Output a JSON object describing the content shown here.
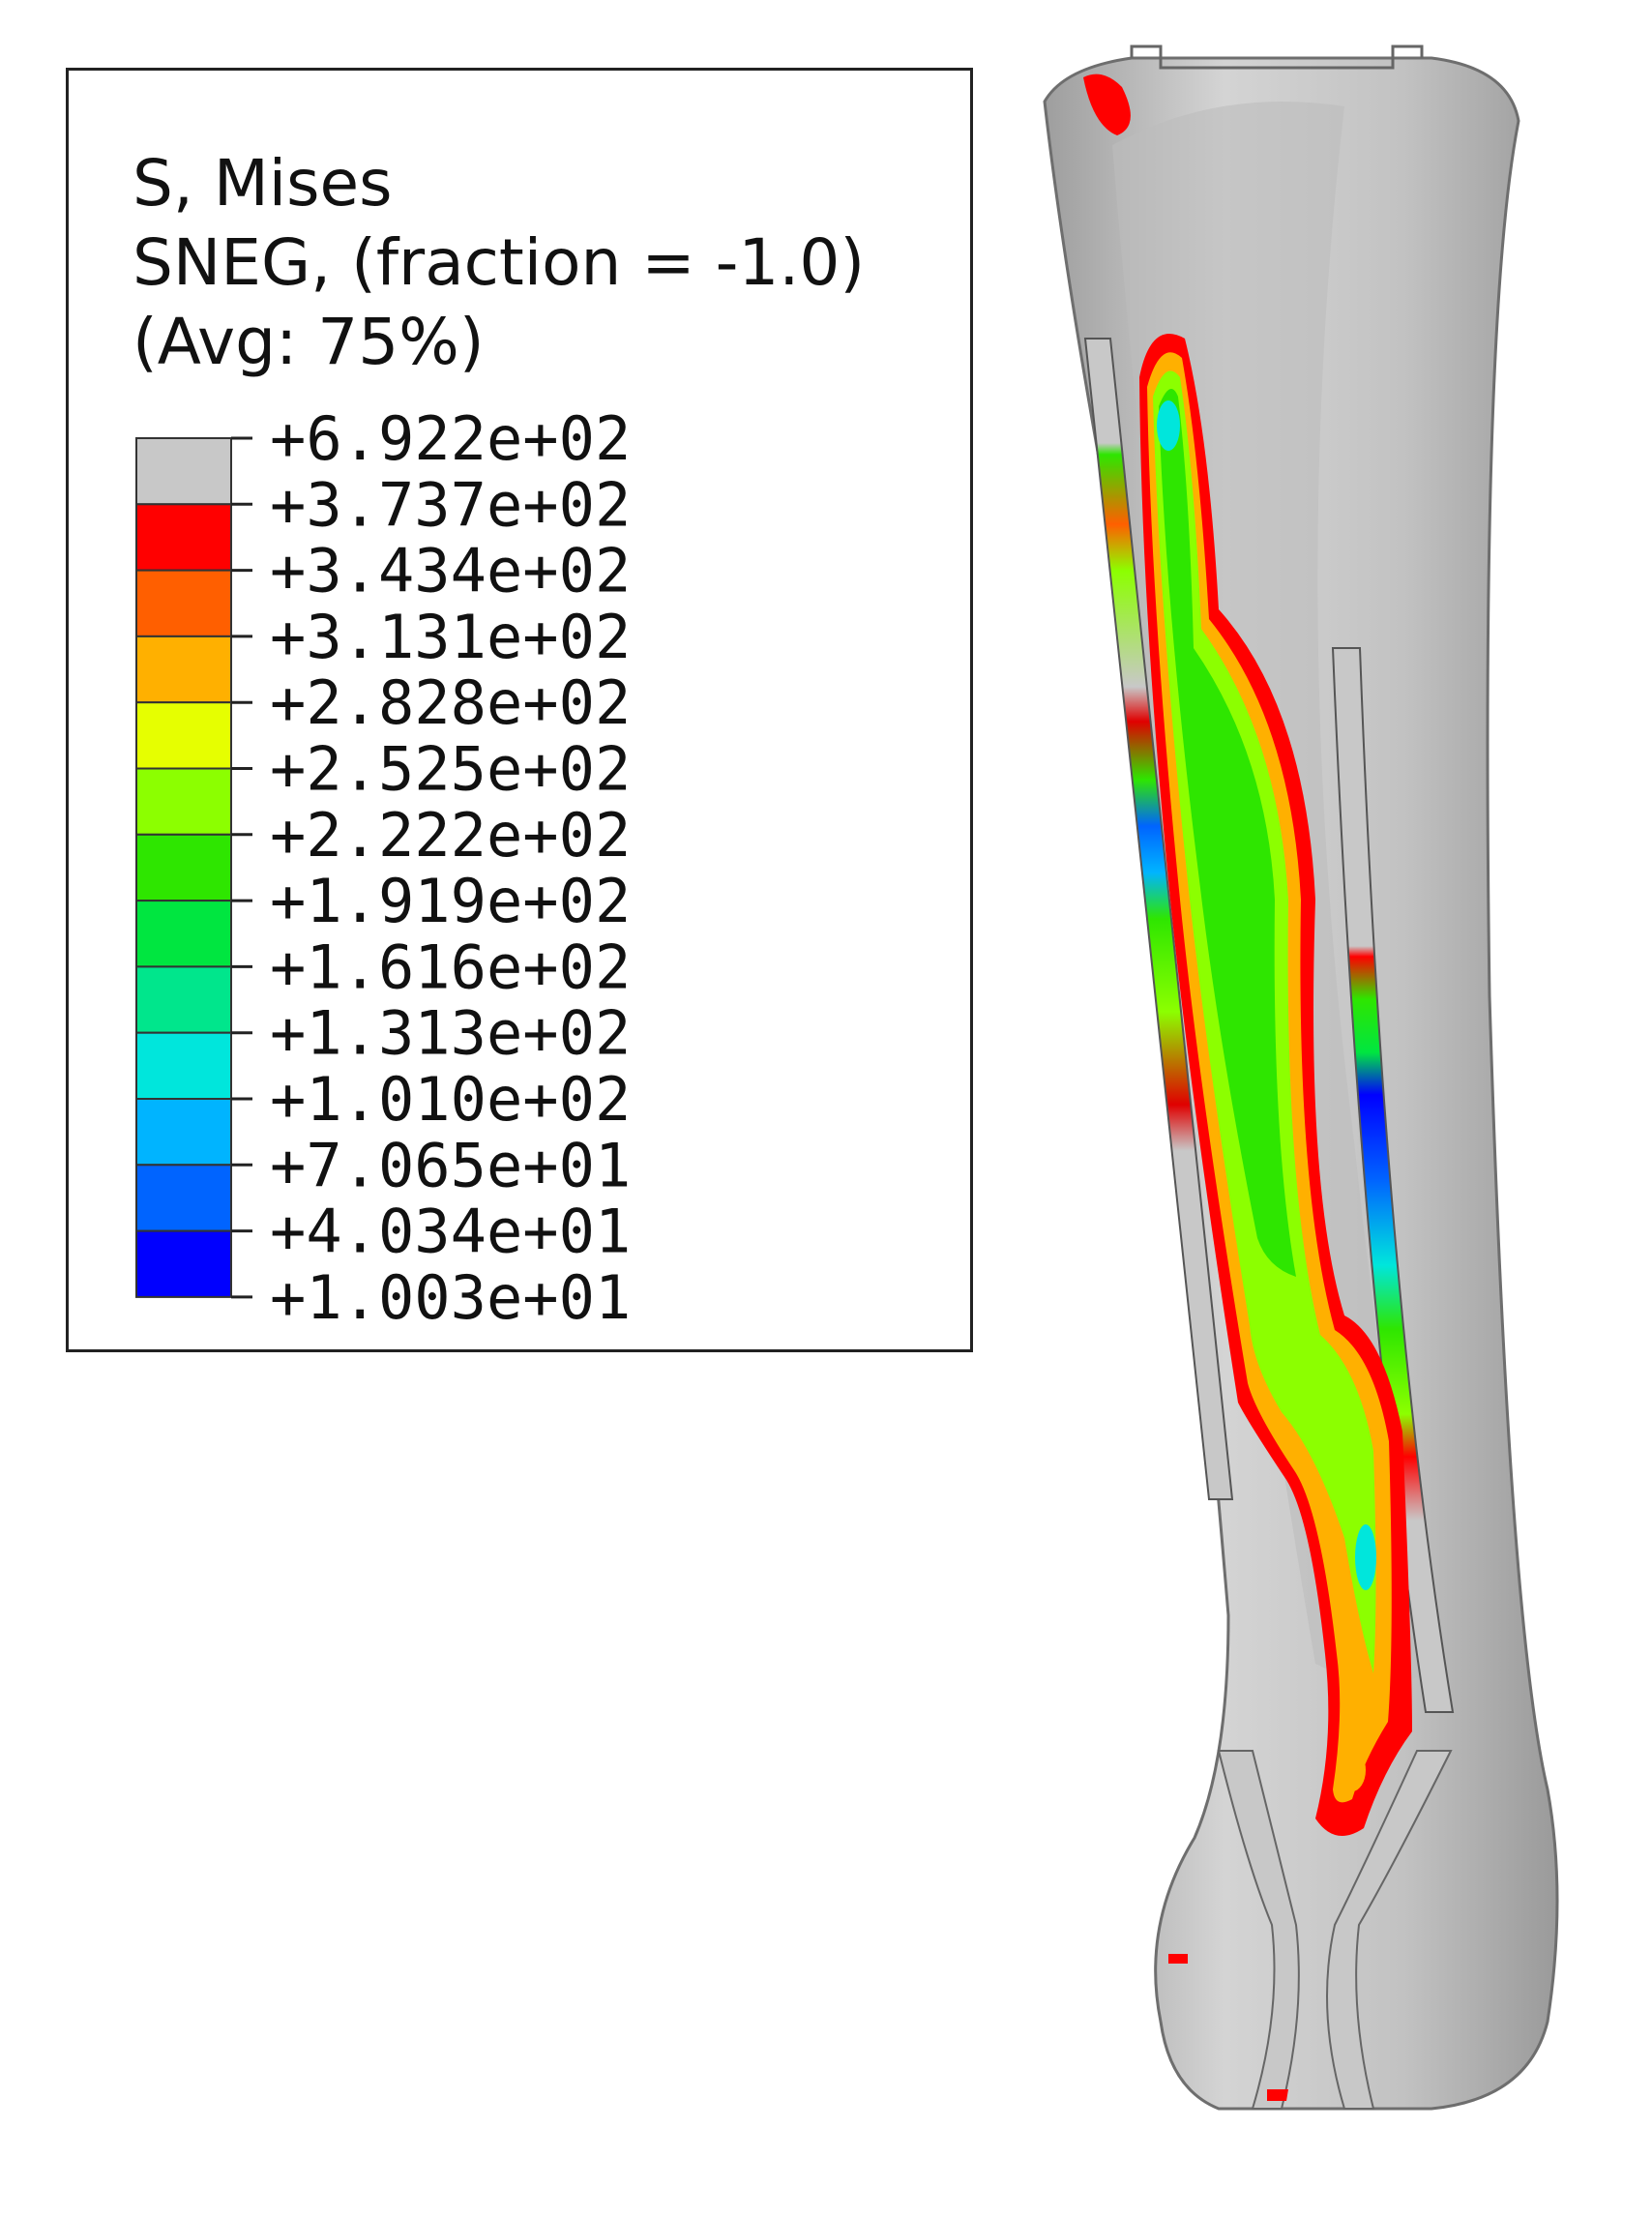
{
  "legend": {
    "title_lines": [
      "S, Mises",
      "SNEG, (fraction = -1.0)",
      "(Avg: 75%)"
    ],
    "levels": [
      {
        "label": "+6.922e+02",
        "color": "#c8c8c8"
      },
      {
        "label": "+3.737e+02",
        "color": "#ff0000"
      },
      {
        "label": "+3.434e+02",
        "color": "#ff5f00"
      },
      {
        "label": "+3.131e+02",
        "color": "#ffb000"
      },
      {
        "label": "+2.828e+02",
        "color": "#e6ff00"
      },
      {
        "label": "+2.525e+02",
        "color": "#8cff00"
      },
      {
        "label": "+2.222e+02",
        "color": "#2ee600"
      },
      {
        "label": "+1.919e+02",
        "color": "#00e640"
      },
      {
        "label": "+1.616e+02",
        "color": "#00e68c"
      },
      {
        "label": "+1.313e+02",
        "color": "#00e6dc"
      },
      {
        "label": "+1.010e+02",
        "color": "#00b4ff"
      },
      {
        "label": "+7.065e+01",
        "color": "#0064ff"
      },
      {
        "label": "+4.034e+01",
        "color": "#0000ff"
      },
      {
        "label": "+1.003e+01",
        "color": null
      }
    ]
  }
}
